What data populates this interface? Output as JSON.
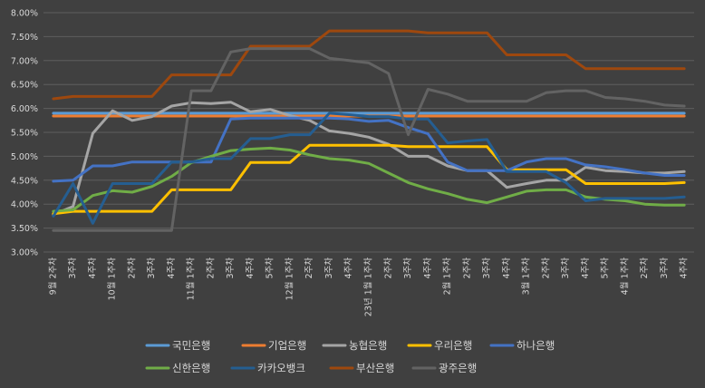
{
  "chart_data": {
    "type": "line",
    "ylim": [
      0.03,
      0.08
    ],
    "y_ticks": [
      "3.00%",
      "3.50%",
      "4.00%",
      "4.50%",
      "5.00%",
      "5.50%",
      "6.00%",
      "6.50%",
      "7.00%",
      "7.50%",
      "8.00%"
    ],
    "grid": "horizontal",
    "legend_position": "bottom",
    "categories": [
      "9월 2주차",
      "3주차",
      "4주차",
      "10월 1주차",
      "2주차",
      "3주차",
      "4주차",
      "11월 1주차",
      "2주차",
      "3주차",
      "4주차",
      "5주차",
      "12월 1주차",
      "2주차",
      "3주차",
      "4주차",
      "23년 1월 1주차",
      "2주차",
      "3주차",
      "4주차",
      "2월 1주차",
      "2주차",
      "3주차",
      "4주차",
      "3월 1주차",
      "2주차",
      "3주차",
      "4주차",
      "5주차",
      "4월 1주차",
      "2주차",
      "3주차",
      "4주차"
    ],
    "series": [
      {
        "name": "국민은행",
        "color": "#5b9bd5",
        "values": [
          0.059,
          0.059,
          0.059,
          0.059,
          0.059,
          0.059,
          0.059,
          0.059,
          0.059,
          0.059,
          0.059,
          0.059,
          0.059,
          0.059,
          0.059,
          0.059,
          0.059,
          0.059,
          0.059,
          0.059,
          0.059,
          0.059,
          0.059,
          0.059,
          0.059,
          0.059,
          0.059,
          0.059,
          0.059,
          0.059,
          0.059,
          0.059,
          0.059
        ]
      },
      {
        "name": "기업은행",
        "color": "#ed7d31",
        "values": [
          0.0584,
          0.0584,
          0.0584,
          0.0584,
          0.0584,
          0.0584,
          0.0584,
          0.0584,
          0.0584,
          0.0584,
          0.0584,
          0.0584,
          0.0584,
          0.0584,
          0.0584,
          0.0584,
          0.0584,
          0.0584,
          0.0584,
          0.0584,
          0.0584,
          0.0584,
          0.0584,
          0.0584,
          0.0584,
          0.0584,
          0.0584,
          0.0584,
          0.0584,
          0.0584,
          0.0584,
          0.0584,
          0.0584
        ]
      },
      {
        "name": "농협은행",
        "color": "#a5a5a5",
        "values": [
          0.0378,
          0.0395,
          0.0548,
          0.0595,
          0.0575,
          0.0583,
          0.0605,
          0.0612,
          0.061,
          0.0613,
          0.0593,
          0.0598,
          0.0585,
          0.0575,
          0.0553,
          0.0548,
          0.054,
          0.0525,
          0.05,
          0.05,
          0.048,
          0.047,
          0.047,
          0.0435,
          0.0443,
          0.045,
          0.045,
          0.0477,
          0.047,
          0.0468,
          0.0465,
          0.0465,
          0.0468
        ]
      },
      {
        "name": "우리은행",
        "color": "#ffc000",
        "values": [
          0.038,
          0.0385,
          0.0385,
          0.0385,
          0.0385,
          0.0385,
          0.043,
          0.043,
          0.043,
          0.043,
          0.0487,
          0.0487,
          0.0487,
          0.0523,
          0.0523,
          0.0523,
          0.0523,
          0.0523,
          0.052,
          0.052,
          0.052,
          0.052,
          0.052,
          0.0472,
          0.0472,
          0.0472,
          0.0472,
          0.0443,
          0.0443,
          0.0443,
          0.0443,
          0.0443,
          0.0445
        ]
      },
      {
        "name": "하나은행",
        "color": "#4472c4",
        "values": [
          0.0448,
          0.045,
          0.048,
          0.048,
          0.0488,
          0.0488,
          0.0488,
          0.0488,
          0.0488,
          0.0578,
          0.058,
          0.058,
          0.058,
          0.058,
          0.058,
          0.0578,
          0.0573,
          0.0575,
          0.056,
          0.0547,
          0.0488,
          0.047,
          0.047,
          0.047,
          0.0488,
          0.0495,
          0.0495,
          0.0482,
          0.0478,
          0.0472,
          0.0465,
          0.046,
          0.046
        ]
      },
      {
        "name": "신한은행",
        "color": "#70ad47",
        "values": [
          0.0385,
          0.0388,
          0.0418,
          0.0428,
          0.0425,
          0.0437,
          0.0458,
          0.0487,
          0.05,
          0.0512,
          0.0515,
          0.0517,
          0.0513,
          0.0503,
          0.0495,
          0.0492,
          0.0485,
          0.0465,
          0.0445,
          0.0432,
          0.0422,
          0.041,
          0.0403,
          0.0415,
          0.0427,
          0.043,
          0.043,
          0.0415,
          0.041,
          0.0407,
          0.04,
          0.0398,
          0.0398
        ]
      },
      {
        "name": "카카오뱅크",
        "color": "#255e91",
        "values": [
          0.0375,
          0.0443,
          0.036,
          0.0443,
          0.0443,
          0.0443,
          0.0488,
          0.0488,
          0.0495,
          0.0495,
          0.0537,
          0.0537,
          0.0545,
          0.0545,
          0.059,
          0.0587,
          0.0583,
          0.0583,
          0.0578,
          0.0578,
          0.0528,
          0.0532,
          0.0535,
          0.0468,
          0.0468,
          0.0468,
          0.0445,
          0.0407,
          0.0412,
          0.0412,
          0.0412,
          0.0412,
          0.0415
        ]
      },
      {
        "name": "부산은행",
        "color": "#9e480e",
        "values": [
          0.062,
          0.0625,
          0.0625,
          0.0625,
          0.0625,
          0.0625,
          0.067,
          0.067,
          0.067,
          0.067,
          0.073,
          0.073,
          0.073,
          0.073,
          0.0762,
          0.0762,
          0.0762,
          0.0762,
          0.0762,
          0.0758,
          0.0758,
          0.0758,
          0.0758,
          0.0712,
          0.0712,
          0.0712,
          0.0712,
          0.0683,
          0.0683,
          0.0683,
          0.0683,
          0.0683,
          0.0683
        ]
      },
      {
        "name": "광주은행",
        "color": "#636363",
        "values": [
          0.0345,
          0.0345,
          0.0345,
          0.0345,
          0.0345,
          0.0345,
          0.0345,
          0.0637,
          0.0637,
          0.0718,
          0.0725,
          0.0725,
          0.0725,
          0.0725,
          0.0705,
          0.07,
          0.0695,
          0.0673,
          0.0545,
          0.064,
          0.063,
          0.0615,
          0.0615,
          0.0615,
          0.0615,
          0.0633,
          0.0637,
          0.0637,
          0.0623,
          0.062,
          0.0615,
          0.0607,
          0.0605
        ]
      }
    ]
  }
}
